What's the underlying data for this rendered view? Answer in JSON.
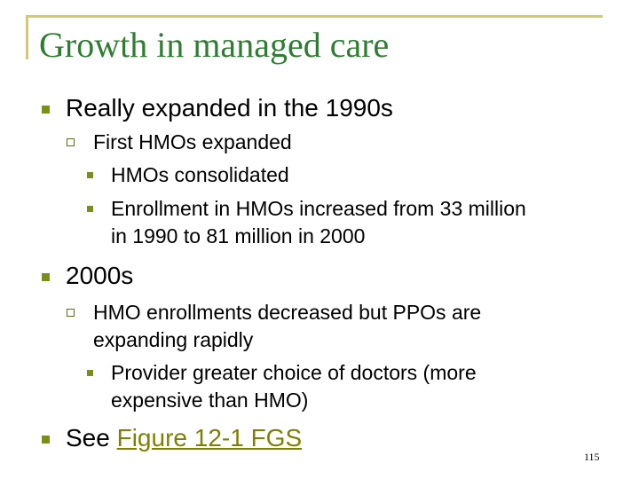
{
  "slide": {
    "title": "Growth in managed care",
    "page_number": "115",
    "bullets": {
      "b1": "Really expanded in the 1990s",
      "b1_sub1": "First HMOs expanded",
      "b1_sub1_a": "HMOs consolidated",
      "b1_sub1_b_line1": "Enrollment in HMOs increased from 33 million",
      "b1_sub1_b_line2": "in 1990 to 81 million in 2000",
      "b2": "2000s",
      "b2_sub1_line1": "HMO enrollments decreased but PPOs are",
      "b2_sub1_line2": "expanding rapidly",
      "b2_sub1_a_line1": "Provider greater choice of doctors (more",
      "b2_sub1_a_line2": "expensive than HMO)",
      "b3_prefix": "See ",
      "b3_link": "Figure 12-1 FGS"
    },
    "colors": {
      "title": "#2e7d32",
      "frame": "#d3c779",
      "bullet": "#7a8f1a",
      "link": "#7f8000"
    }
  }
}
